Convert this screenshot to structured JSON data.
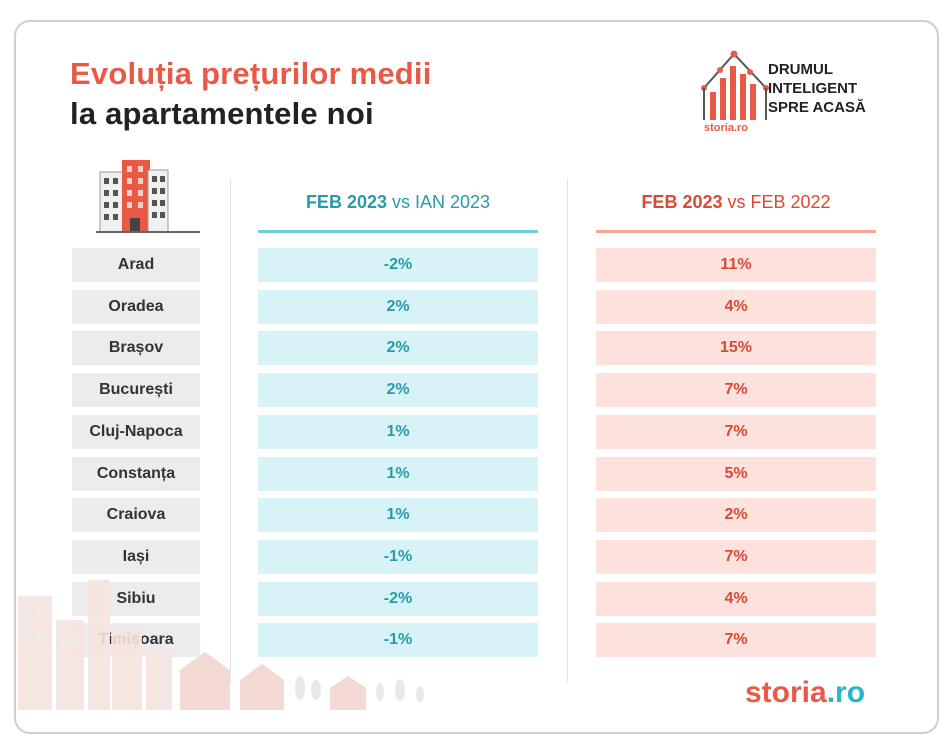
{
  "title": {
    "line1": "Evoluția prețurilor medii",
    "line2": "la apartamentele noi"
  },
  "logo": {
    "small_brand": "storia.ro",
    "tagline": [
      "DRUMUL",
      "INTELIGENT",
      "SPRE ACASĂ"
    ]
  },
  "brand": {
    "part1": "storia",
    "part2": ".ro"
  },
  "colors": {
    "accent_red": "#e85a45",
    "accent_teal": "#2a9aa8",
    "teal_fill": "#d8f3f7",
    "red_fill": "#fde1dc",
    "city_fill": "#ececec"
  },
  "chart_data": {
    "type": "table",
    "columns": [
      {
        "bold": "FEB 2023",
        "rest": " vs IAN 2023"
      },
      {
        "bold": "FEB 2023",
        "rest": " vs FEB 2022"
      }
    ],
    "rows": [
      {
        "city": "Arad",
        "vs_prev_month": "-2%",
        "vs_prev_year": "11%"
      },
      {
        "city": "Oradea",
        "vs_prev_month": "2%",
        "vs_prev_year": "4%"
      },
      {
        "city": "Brașov",
        "vs_prev_month": "2%",
        "vs_prev_year": "15%"
      },
      {
        "city": "București",
        "vs_prev_month": "2%",
        "vs_prev_year": "7%"
      },
      {
        "city": "Cluj-Napoca",
        "vs_prev_month": "1%",
        "vs_prev_year": "7%"
      },
      {
        "city": "Constanța",
        "vs_prev_month": "1%",
        "vs_prev_year": "5%"
      },
      {
        "city": "Craiova",
        "vs_prev_month": "1%",
        "vs_prev_year": "2%"
      },
      {
        "city": "Iași",
        "vs_prev_month": "-1%",
        "vs_prev_year": "7%"
      },
      {
        "city": "Sibiu",
        "vs_prev_month": "-2%",
        "vs_prev_year": "4%"
      },
      {
        "city": "Timișoara",
        "vs_prev_month": "-1%",
        "vs_prev_year": "7%"
      }
    ]
  }
}
